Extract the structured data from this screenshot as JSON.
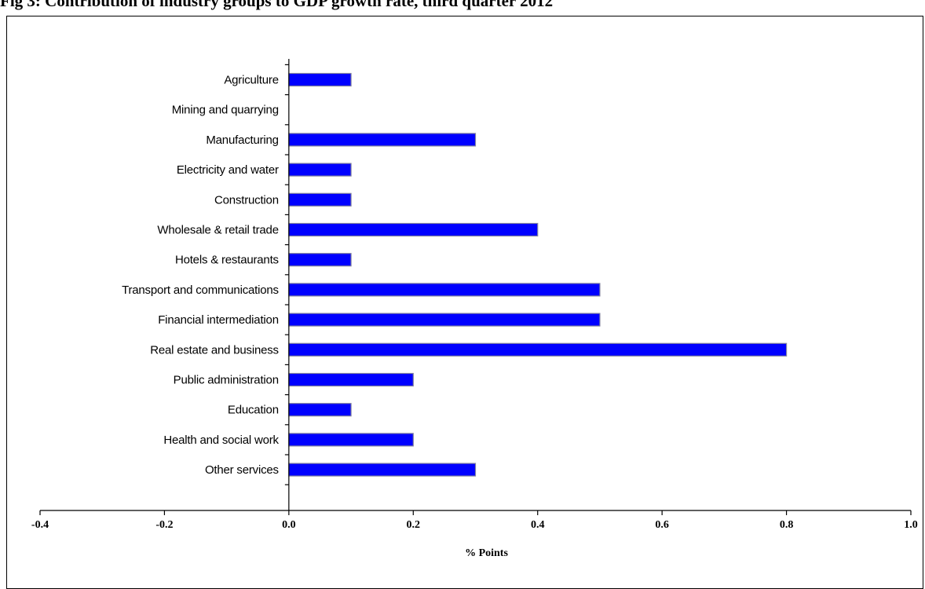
{
  "page": {
    "title": "Fig 3: Contribution of industry groups to GDP growth rate, third quarter 2012"
  },
  "chart_data": {
    "type": "bar",
    "orientation": "horizontal",
    "categories": [
      "Agriculture",
      "Mining and quarrying",
      "Manufacturing",
      "Electricity and  water",
      "Construction",
      "Wholesale & retail trade",
      "Hotels & restaurants",
      "Transport and communications",
      "Financial intermediation",
      "Real estate and business",
      "Public administration",
      "Education",
      "Health and social work",
      "Other services"
    ],
    "values": [
      0.1,
      0.0,
      0.3,
      0.1,
      0.1,
      0.4,
      0.1,
      0.5,
      0.5,
      0.8,
      0.2,
      0.1,
      0.2,
      0.3
    ],
    "xlabel": "% Points",
    "xlim": [
      -0.4,
      1.0
    ],
    "xticks": [
      "-0.4",
      "-0.2",
      "0.0",
      "0.2",
      "0.4",
      "0.6",
      "0.8",
      "1.0"
    ],
    "bar_color": "#0000ff",
    "grid": false,
    "legend": "none"
  }
}
